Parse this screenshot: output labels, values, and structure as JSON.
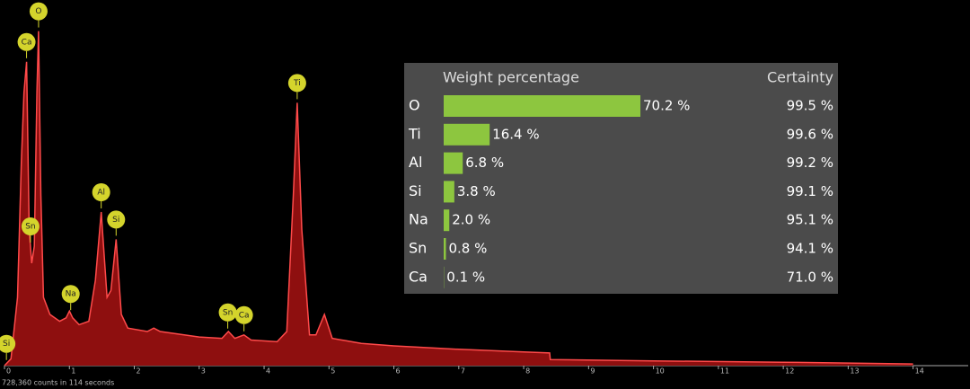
{
  "chart_data": [
    {
      "type": "area",
      "x": [
        0,
        0.1,
        0.2,
        0.26,
        0.3,
        0.34,
        0.38,
        0.42,
        0.46,
        0.5,
        0.525,
        0.56,
        0.6,
        0.7,
        0.85,
        0.95,
        1.0,
        1.05,
        1.15,
        1.3,
        1.4,
        1.49,
        1.58,
        1.64,
        1.72,
        1.8,
        1.9,
        2.2,
        2.3,
        2.4,
        3.0,
        3.35,
        3.45,
        3.55,
        3.69,
        3.8,
        4.2,
        4.35,
        4.45,
        4.51,
        4.58,
        4.7,
        4.8,
        4.93,
        5.05,
        5.5,
        6,
        7,
        8,
        8.4,
        8.41,
        10,
        12,
        14
      ],
      "values": [
        0,
        2,
        20,
        60,
        80,
        89,
        40,
        30,
        35,
        80,
        98,
        50,
        20,
        15,
        13,
        14,
        16,
        14,
        12,
        13,
        25,
        45,
        20,
        22,
        37,
        15,
        11,
        10,
        11,
        10,
        8.4,
        8,
        10,
        8,
        9,
        7.5,
        7,
        10,
        50,
        77,
        40,
        9,
        9,
        15,
        8,
        6.5,
        5.8,
        4.8,
        4,
        3.7,
        1.8,
        1.4,
        1,
        0.5
      ],
      "xlim": [
        0,
        14.6
      ],
      "ylim": [
        0,
        100
      ],
      "xticks": [
        0,
        1,
        2,
        3,
        4,
        5,
        6,
        7,
        8,
        9,
        10,
        11,
        12,
        13,
        14
      ],
      "fill": "#8e0f0f",
      "line_color": "#ff4a4a",
      "label_color": "#d4d42c",
      "peak_labels": [
        {
          "label": "Si",
          "x": 0.03
        },
        {
          "label": "Ca",
          "x": 0.34
        },
        {
          "label": "Sn",
          "x": 0.4
        },
        {
          "label": "O",
          "x": 0.525
        },
        {
          "label": "Na",
          "x": 1.02
        },
        {
          "label": "Al",
          "x": 1.49
        },
        {
          "label": "Si",
          "x": 1.72
        },
        {
          "label": "Sn",
          "x": 3.44
        },
        {
          "label": "Ca",
          "x": 3.69
        },
        {
          "label": "Ti",
          "x": 4.51
        }
      ],
      "note": "728,360 counts in 114 seconds"
    },
    {
      "type": "bar",
      "title": "Weight percentage",
      "certainty_title": "Certainty",
      "categories": [
        "O",
        "Ti",
        "Al",
        "Si",
        "Na",
        "Sn",
        "Ca"
      ],
      "values": [
        70.2,
        16.4,
        6.8,
        3.8,
        2.0,
        0.8,
        0.1
      ],
      "value_labels": [
        "70.2 %",
        "16.4 %",
        "6.8 %",
        "3.8 %",
        "2.0 %",
        "0.8 %",
        "0.1 %"
      ],
      "certainty": [
        "99.5 %",
        "99.6 %",
        "99.2 %",
        "99.1 %",
        "95.1 %",
        "94.1 %",
        "71.0 %"
      ],
      "xlim": [
        0,
        100
      ],
      "color": "#8dc63f"
    }
  ]
}
